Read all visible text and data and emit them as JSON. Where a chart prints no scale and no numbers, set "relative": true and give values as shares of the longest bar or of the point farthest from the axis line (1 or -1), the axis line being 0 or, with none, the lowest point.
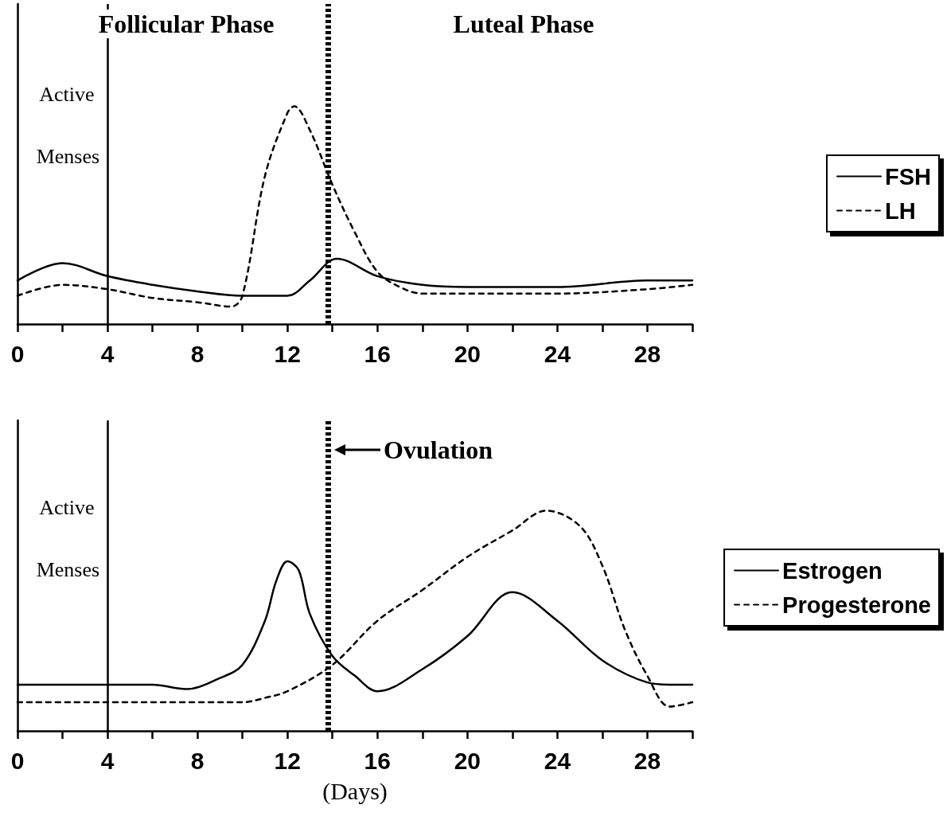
{
  "chart_data": [
    {
      "type": "line",
      "relative": true,
      "annotations": [
        "Follicular Phase",
        "Luteal Phase"
      ],
      "xlim": [
        0,
        30
      ],
      "xticks": [
        0,
        {
          "value": 2,
          "label": null
        },
        4,
        {
          "value": 6,
          "label": null
        },
        8,
        {
          "value": 10,
          "label": null
        },
        12,
        {
          "value": 14,
          "label": null
        },
        16,
        {
          "value": 18,
          "label": null
        },
        20,
        {
          "value": 22,
          "label": null
        },
        24,
        {
          "value": 26,
          "label": null
        },
        28,
        {
          "value": 30,
          "label": null
        }
      ],
      "tick_labels": "x",
      "grid": false,
      "legend": "right",
      "marker": "none",
      "ref_lines": [
        {
          "axis": "x",
          "value": 4,
          "label": "Active Menses",
          "color": "#000000",
          "line_style": "solid"
        },
        {
          "axis": "x",
          "value": 13.8,
          "label": null,
          "color": "#000000",
          "line_style": "dotted"
        }
      ],
      "series": [
        {
          "name": "FSH",
          "color": "#000000",
          "line_style": "solid",
          "x": [
            0,
            2,
            4,
            6,
            8,
            10,
            12,
            13,
            14.2,
            16,
            18,
            20,
            24,
            28,
            30
          ],
          "values": [
            0.2,
            0.28,
            0.22,
            0.18,
            0.15,
            0.13,
            0.13,
            0.2,
            0.3,
            0.22,
            0.18,
            0.17,
            0.17,
            0.2,
            0.2
          ]
        },
        {
          "name": "LH",
          "color": "#000000",
          "line_style": "dashed",
          "x": [
            0,
            2,
            4,
            6,
            8,
            9.5,
            10,
            11,
            12,
            12.3,
            13,
            14,
            15,
            16,
            17,
            18,
            20,
            24,
            28,
            30
          ],
          "values": [
            0.13,
            0.18,
            0.16,
            0.12,
            0.1,
            0.08,
            0.13,
            0.68,
            0.97,
            1,
            0.89,
            0.64,
            0.42,
            0.24,
            0.17,
            0.14,
            0.14,
            0.14,
            0.16,
            0.18
          ]
        }
      ]
    },
    {
      "type": "line",
      "relative": true,
      "xlabel": "(Days)",
      "xlim": [
        0,
        30
      ],
      "xticks": [
        0,
        {
          "value": 2,
          "label": null
        },
        4,
        {
          "value": 6,
          "label": null
        },
        8,
        {
          "value": 10,
          "label": null
        },
        12,
        {
          "value": 14,
          "label": null
        },
        16,
        {
          "value": 18,
          "label": null
        },
        20,
        {
          "value": 22,
          "label": null
        },
        24,
        {
          "value": 26,
          "label": null
        },
        28,
        {
          "value": 30,
          "label": null
        }
      ],
      "tick_labels": "x",
      "grid": false,
      "legend": "right",
      "marker": "none",
      "ref_lines": [
        {
          "axis": "x",
          "value": 4,
          "label": "Active Menses",
          "color": "#000000",
          "line_style": "solid"
        },
        {
          "axis": "x",
          "value": 13.8,
          "label": "Ovulation",
          "color": "#000000",
          "line_style": "dotted"
        }
      ],
      "series": [
        {
          "name": "Estrogen",
          "color": "#000000",
          "line_style": "solid",
          "x": [
            0,
            6,
            7.5,
            9,
            10,
            11,
            11.5,
            12,
            12.5,
            13,
            14,
            15,
            16,
            18,
            20,
            22,
            24,
            26,
            28,
            29,
            30
          ],
          "values": [
            0.21,
            0.21,
            0.19,
            0.24,
            0.3,
            0.5,
            0.68,
            0.77,
            0.73,
            0.53,
            0.34,
            0.25,
            0.18,
            0.28,
            0.43,
            0.63,
            0.5,
            0.32,
            0.22,
            0.21,
            0.21
          ]
        },
        {
          "name": "Progesterone",
          "color": "#000000",
          "line_style": "dashed",
          "x": [
            0,
            10,
            11,
            12,
            14,
            16,
            18,
            20,
            22,
            23.5,
            25,
            26,
            27,
            28,
            29,
            30
          ],
          "values": [
            0.13,
            0.13,
            0.15,
            0.18,
            0.3,
            0.5,
            0.64,
            0.79,
            0.91,
            1,
            0.93,
            0.75,
            0.46,
            0.25,
            0.11,
            0.13
          ]
        }
      ]
    }
  ]
}
